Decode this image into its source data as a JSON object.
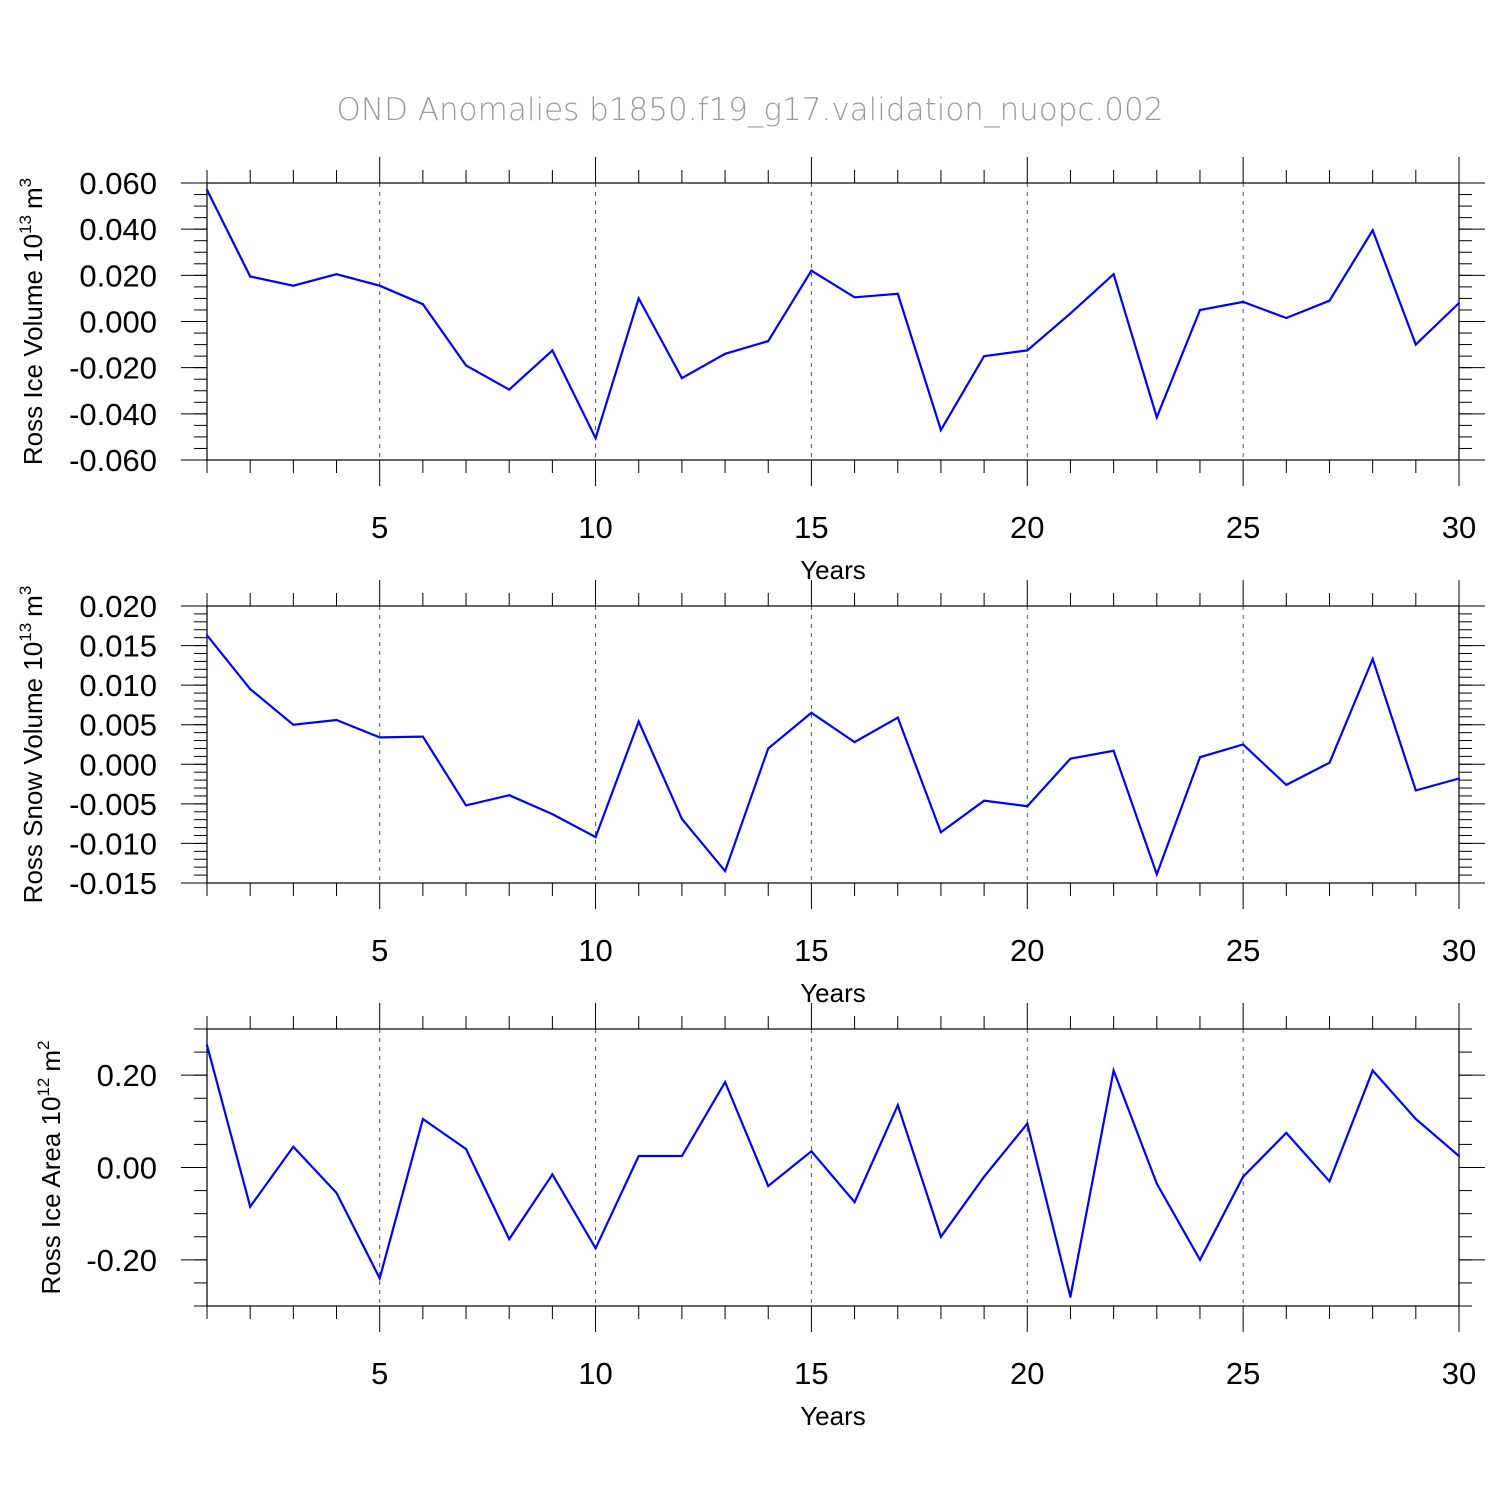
{
  "title": "OND Anomalies b1850.f19_g17.validation_nuopc.002",
  "colors": {
    "line": "#0000ff",
    "axis": "#000000",
    "grid": "#555555",
    "title": "#9a9a9a"
  },
  "chart_data": [
    {
      "type": "line",
      "ylabel_main": "Ross Ice Volume 10",
      "ylabel_exp": "13",
      "ylabel_unit": "m",
      "ylabel_unit_exp": "3",
      "xlabel": "Years",
      "xlim": [
        1,
        30
      ],
      "ylim": [
        -0.06,
        0.06
      ],
      "yticks": [
        -0.06,
        -0.04,
        -0.02,
        0.0,
        0.02,
        0.04,
        0.06
      ],
      "ytick_labels": [
        "-0.060",
        "-0.040",
        "-0.020",
        "0.000",
        "0.020",
        "0.040",
        "0.060"
      ],
      "yminor_step": 0.005,
      "xticks": [
        5,
        10,
        15,
        20,
        25,
        30
      ],
      "xtick_labels": [
        "5",
        "10",
        "15",
        "20",
        "25",
        "30"
      ],
      "x": [
        1,
        2,
        3,
        4,
        5,
        6,
        7,
        8,
        9,
        10,
        11,
        12,
        13,
        14,
        15,
        16,
        17,
        18,
        19,
        20,
        21,
        22,
        23,
        24,
        25,
        26,
        27,
        28,
        29,
        30
      ],
      "values": [
        0.057,
        0.0195,
        0.0155,
        0.0205,
        0.0155,
        0.0075,
        -0.019,
        -0.0295,
        -0.0125,
        -0.0505,
        0.01,
        -0.0245,
        -0.014,
        -0.0085,
        0.022,
        0.0105,
        0.012,
        -0.047,
        -0.015,
        -0.0125,
        0.0035,
        0.0205,
        -0.0415,
        0.005,
        0.0085,
        0.0015,
        0.009,
        0.0395,
        -0.01,
        0.008
      ]
    },
    {
      "type": "line",
      "ylabel_main": "Ross Snow Volume 10",
      "ylabel_exp": "13",
      "ylabel_unit": "m",
      "ylabel_unit_exp": "3",
      "xlabel": "Years",
      "xlim": [
        1,
        30
      ],
      "ylim": [
        -0.015,
        0.02
      ],
      "yticks": [
        -0.015,
        -0.01,
        -0.005,
        0.0,
        0.005,
        0.01,
        0.015,
        0.02
      ],
      "ytick_labels": [
        "-0.015",
        "-0.010",
        "-0.005",
        "0.000",
        "0.005",
        "0.010",
        "0.015",
        "0.020"
      ],
      "yminor_step": 0.001,
      "xticks": [
        5,
        10,
        15,
        20,
        25,
        30
      ],
      "xtick_labels": [
        "5",
        "10",
        "15",
        "20",
        "25",
        "30"
      ],
      "x": [
        1,
        2,
        3,
        4,
        5,
        6,
        7,
        8,
        9,
        10,
        11,
        12,
        13,
        14,
        15,
        16,
        17,
        18,
        19,
        20,
        21,
        22,
        23,
        24,
        25,
        26,
        27,
        28,
        29,
        30
      ],
      "values": [
        0.0163,
        0.0095,
        0.005,
        0.0056,
        0.0034,
        0.0035,
        -0.0052,
        -0.0039,
        -0.0063,
        -0.0092,
        0.0054,
        -0.0069,
        -0.0135,
        0.002,
        0.0065,
        0.0028,
        0.0059,
        -0.0086,
        -0.0046,
        -0.0053,
        0.0007,
        0.0017,
        -0.0139,
        0.0009,
        0.0025,
        -0.0026,
        0.0002,
        0.0133,
        -0.0033,
        -0.0018
      ]
    },
    {
      "type": "line",
      "ylabel_main": "Ross Ice Area 10",
      "ylabel_exp": "12",
      "ylabel_unit": "m",
      "ylabel_unit_exp": "2",
      "xlabel": "Years",
      "xlim": [
        1,
        30
      ],
      "ylim": [
        -0.3,
        0.3
      ],
      "yticks": [
        -0.2,
        0.0,
        0.2
      ],
      "ytick_labels": [
        "-0.20",
        "0.00",
        "0.20"
      ],
      "yminor_step": 0.05,
      "xticks": [
        5,
        10,
        15,
        20,
        25,
        30
      ],
      "xtick_labels": [
        "5",
        "10",
        "15",
        "20",
        "25",
        "30"
      ],
      "x": [
        1,
        2,
        3,
        4,
        5,
        6,
        7,
        8,
        9,
        10,
        11,
        12,
        13,
        14,
        15,
        16,
        17,
        18,
        19,
        20,
        21,
        22,
        23,
        24,
        25,
        26,
        27,
        28,
        29,
        30
      ],
      "values": [
        0.265,
        -0.085,
        0.045,
        -0.055,
        -0.24,
        0.105,
        0.04,
        -0.155,
        -0.015,
        -0.175,
        0.025,
        0.025,
        0.185,
        -0.04,
        0.035,
        -0.075,
        0.135,
        -0.15,
        -0.02,
        0.095,
        -0.28,
        0.21,
        -0.035,
        -0.2,
        -0.02,
        0.075,
        -0.03,
        0.21,
        0.105,
        0.025
      ]
    }
  ]
}
